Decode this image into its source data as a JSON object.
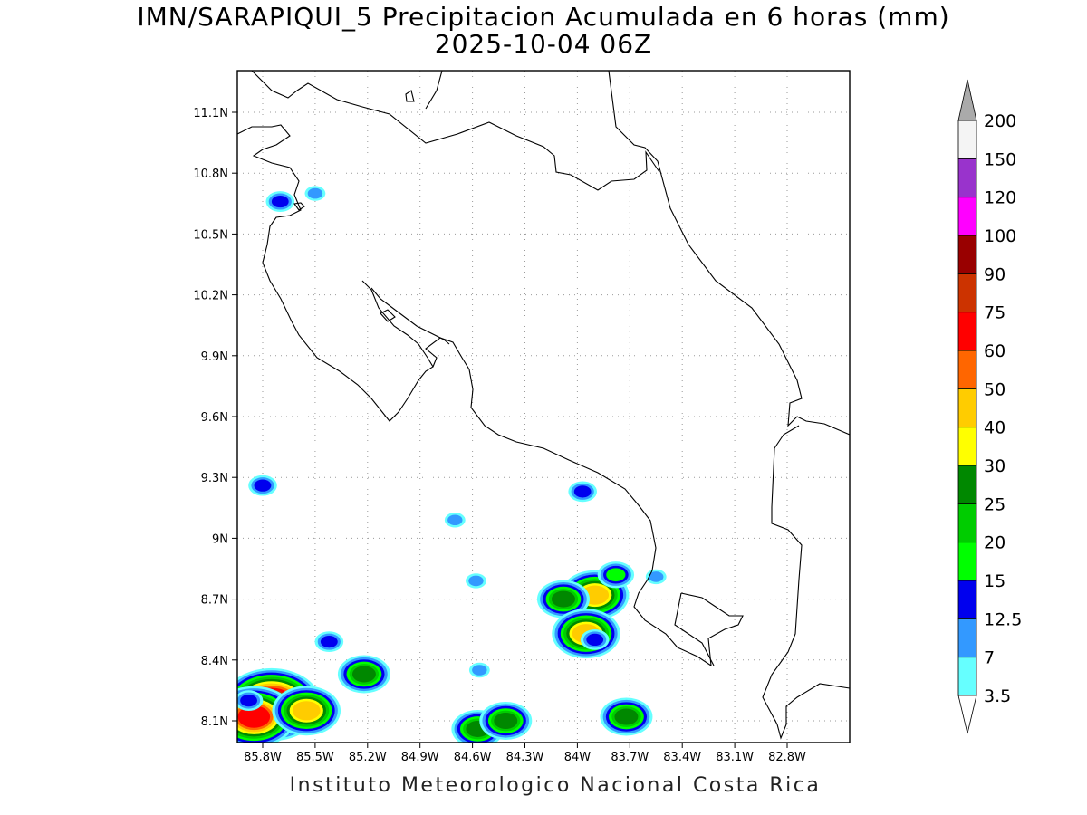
{
  "title": {
    "line1": "IMN/SARAPIQUI_5 Precipitacion Acumulada en 6 horas (mm)",
    "line2": "2025-10-04 06Z"
  },
  "credit": "Instituto Meteorologico Nacional Costa Rica",
  "map": {
    "lon_ticks": [
      "85.8W",
      "85.5W",
      "85.2W",
      "84.9W",
      "84.6W",
      "84.3W",
      "84W",
      "83.7W",
      "83.4W",
      "83.1W",
      "82.8W"
    ],
    "lat_ticks": [
      "11.1N",
      "10.8N",
      "10.5N",
      "10.2N",
      "9.9N",
      "9.6N",
      "9.3N",
      "9N",
      "8.7N",
      "8.4N",
      "8.1N"
    ],
    "grid": true,
    "coastline_color": "#000000"
  },
  "colorbar": {
    "labels": [
      "3.5",
      "7",
      "12.5",
      "15",
      "20",
      "25",
      "30",
      "40",
      "50",
      "60",
      "75",
      "90",
      "100",
      "120",
      "150",
      "200"
    ],
    "colors": [
      "#66ffff",
      "#3399ff",
      "#0000ee",
      "#00ff00",
      "#00cc00",
      "#008800",
      "#ffff00",
      "#ffcc00",
      "#ff6600",
      "#ff0000",
      "#cc3300",
      "#990000",
      "#ff00ff",
      "#9933cc",
      "#f4f4f4"
    ],
    "under_color": "#ffffff",
    "over_color": "#aaaaaa"
  },
  "precipitation_cells": [
    {
      "lon": -85.75,
      "lat": 8.18,
      "level": 11
    },
    {
      "lon": -85.85,
      "lat": 8.12,
      "level": 9
    },
    {
      "lon": -85.88,
      "lat": 8.2,
      "level": 2
    },
    {
      "lon": -85.55,
      "lat": 8.15,
      "level": 7
    },
    {
      "lon": -85.22,
      "lat": 8.33,
      "level": 5
    },
    {
      "lon": -84.57,
      "lat": 8.06,
      "level": 5
    },
    {
      "lon": -84.41,
      "lat": 8.1,
      "level": 5
    },
    {
      "lon": -83.9,
      "lat": 8.72,
      "level": 7
    },
    {
      "lon": -84.08,
      "lat": 8.7,
      "level": 5
    },
    {
      "lon": -83.95,
      "lat": 8.53,
      "level": 7
    },
    {
      "lon": -83.72,
      "lat": 8.12,
      "level": 5
    },
    {
      "lon": -83.78,
      "lat": 8.82,
      "level": 3
    },
    {
      "lon": -83.97,
      "lat": 9.23,
      "level": 2
    },
    {
      "lon": -85.8,
      "lat": 9.26,
      "level": 2
    },
    {
      "lon": -85.7,
      "lat": 10.66,
      "level": 2
    },
    {
      "lon": -85.5,
      "lat": 10.7,
      "level": 1
    },
    {
      "lon": -85.42,
      "lat": 8.49,
      "level": 2
    },
    {
      "lon": -83.9,
      "lat": 8.5,
      "level": 2
    },
    {
      "lon": -84.7,
      "lat": 9.09,
      "level": 1
    },
    {
      "lon": -84.58,
      "lat": 8.79,
      "level": 1
    },
    {
      "lon": -84.56,
      "lat": 8.35,
      "level": 1
    },
    {
      "lon": -83.55,
      "lat": 8.81,
      "level": 1
    }
  ]
}
